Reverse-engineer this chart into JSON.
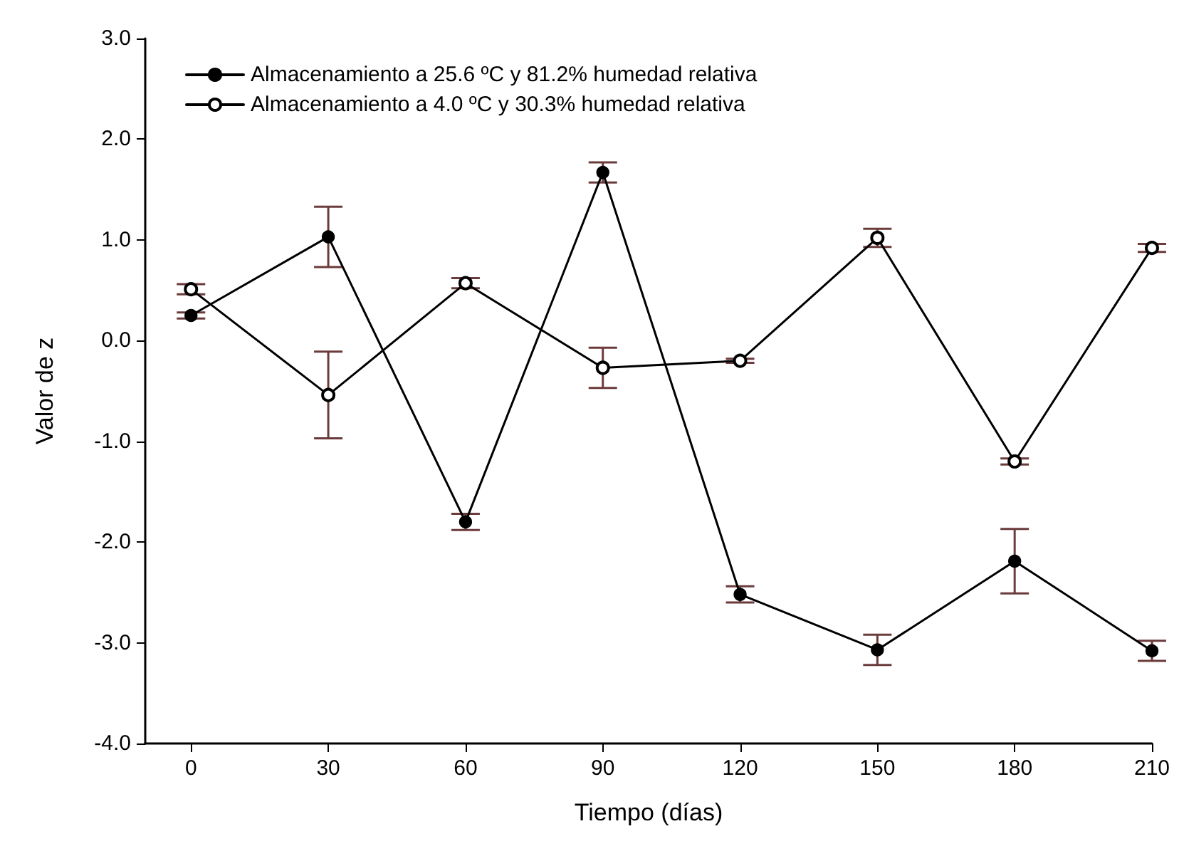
{
  "chart_data": {
    "type": "line",
    "xlabel": "Tiempo (días)",
    "ylabel": "Valor de z",
    "x": [
      0,
      30,
      60,
      90,
      120,
      150,
      180,
      210
    ],
    "series": [
      {
        "name": "Almacenamiento a 25.6 ºC y 81.2% humedad relativa",
        "color": "#000000",
        "values": [
          0.25,
          1.03,
          -1.8,
          1.67,
          -2.52,
          -3.07,
          -2.19,
          -3.08
        ],
        "errors": [
          0.03,
          0.3,
          0.08,
          0.1,
          0.08,
          0.15,
          0.32,
          0.1
        ]
      },
      {
        "name": "Almacenamiento a 4.0 ºC y 30.3% humedad relativa",
        "color": "#000000",
        "values": [
          0.51,
          -0.54,
          0.57,
          -0.27,
          -0.2,
          1.02,
          -1.2,
          0.92
        ],
        "errors": [
          0.05,
          0.43,
          0.05,
          0.2,
          0.02,
          0.09,
          0.03,
          0.04
        ]
      }
    ],
    "xlim": [
      -10,
      210
    ],
    "xticks": [
      0,
      30,
      60,
      90,
      120,
      150,
      180,
      210
    ],
    "ylim": [
      -4,
      3
    ],
    "yticks": [
      {
        "value": -4,
        "label": "-4.0"
      },
      {
        "value": -3,
        "label": "-3.0"
      },
      {
        "value": -2,
        "label": "-2.0"
      },
      {
        "value": -1,
        "label": "-1.0"
      },
      {
        "value": 0,
        "label": "0.0"
      },
      {
        "value": 1,
        "label": "1.0"
      },
      {
        "value": 2,
        "label": "2.0"
      },
      {
        "value": 3,
        "label": "3.0"
      }
    ],
    "grid": false,
    "legend": "top left",
    "marker": "circle",
    "line_style": "solid"
  }
}
